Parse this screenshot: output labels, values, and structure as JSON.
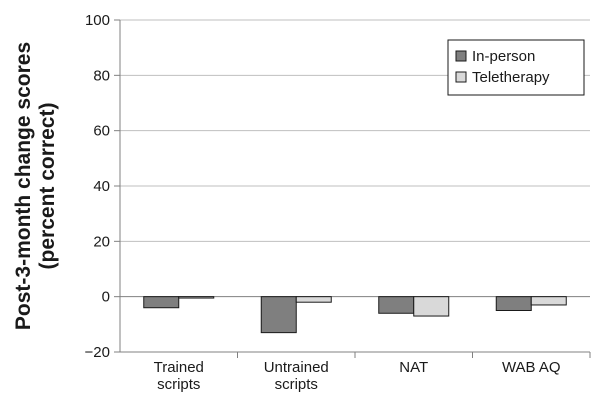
{
  "chart_data": {
    "type": "bar",
    "title": "",
    "xlabel": "",
    "ylabel_lines": [
      "Post-3-month change scores",
      "(percent correct)"
    ],
    "categories": [
      [
        "Trained",
        "scripts"
      ],
      [
        "Untrained",
        "scripts"
      ],
      [
        "NAT"
      ],
      [
        "WAB AQ"
      ]
    ],
    "series": [
      {
        "name": "In-person",
        "values": [
          -4,
          -13,
          -6,
          -5
        ],
        "color": "#7f7f7f"
      },
      {
        "name": "Teletherapy",
        "values": [
          -0.5,
          -2,
          -7,
          -3
        ],
        "color": "#d9d9d9"
      }
    ],
    "ylim": [
      -20,
      100
    ],
    "yticks": [
      -20,
      0,
      20,
      40,
      60,
      80,
      100
    ],
    "ytick_labels": [
      "−20",
      "0",
      "20",
      "40",
      "60",
      "80",
      "100"
    ],
    "grid": true,
    "legend_position": "top-right"
  }
}
